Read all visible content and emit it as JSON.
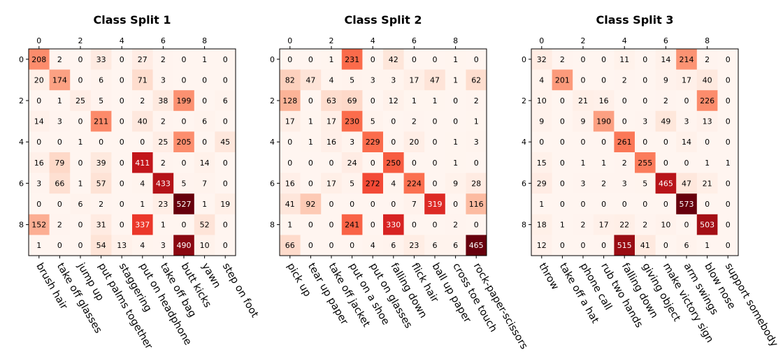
{
  "chart_data": [
    {
      "type": "heatmap",
      "title": "Class Split 1",
      "x_ticks": [
        "0",
        "2",
        "4",
        "6",
        "8"
      ],
      "y_ticks": [
        "0",
        "2",
        "4",
        "6",
        "8"
      ],
      "categories": [
        "brush hair",
        "take off glasses",
        "jump up",
        "put palms together",
        "staggering",
        "put on headphone",
        "take off bag",
        "butt kicks",
        "yawn",
        "step on foot"
      ],
      "colormap": "Reds",
      "vmax": 527,
      "matrix": [
        [
          208,
          2,
          0,
          33,
          0,
          27,
          2,
          0,
          1,
          0
        ],
        [
          20,
          174,
          0,
          6,
          0,
          71,
          3,
          0,
          0,
          0
        ],
        [
          0,
          1,
          25,
          5,
          0,
          2,
          38,
          199,
          0,
          6
        ],
        [
          14,
          3,
          0,
          211,
          0,
          40,
          2,
          0,
          6,
          0
        ],
        [
          0,
          0,
          1,
          0,
          0,
          0,
          25,
          205,
          0,
          45
        ],
        [
          16,
          79,
          0,
          39,
          0,
          411,
          2,
          0,
          14,
          0
        ],
        [
          3,
          66,
          1,
          57,
          0,
          4,
          433,
          5,
          7,
          0
        ],
        [
          0,
          0,
          6,
          2,
          0,
          1,
          23,
          527,
          1,
          19
        ],
        [
          152,
          2,
          0,
          31,
          0,
          337,
          1,
          0,
          52,
          0
        ],
        [
          1,
          0,
          0,
          54,
          13,
          4,
          3,
          490,
          10,
          0
        ]
      ]
    },
    {
      "type": "heatmap",
      "title": "Class Split 2",
      "x_ticks": [
        "0",
        "2",
        "4",
        "6",
        "8"
      ],
      "y_ticks": [
        "0",
        "2",
        "4",
        "6",
        "8"
      ],
      "categories": [
        "pick up",
        "tear up paper",
        "take off jacket",
        "put on a shoe",
        "put on glasses",
        "falling down",
        "flick hair",
        "ball up paper",
        "cross toe touch",
        "rock-paper-scissors"
      ],
      "colormap": "Reds",
      "vmax": 465,
      "matrix": [
        [
          0,
          0,
          1,
          231,
          0,
          42,
          0,
          0,
          1,
          0
        ],
        [
          82,
          47,
          4,
          5,
          3,
          3,
          17,
          47,
          1,
          62
        ],
        [
          128,
          0,
          63,
          69,
          0,
          12,
          1,
          1,
          0,
          2
        ],
        [
          17,
          1,
          17,
          230,
          5,
          0,
          2,
          0,
          0,
          1
        ],
        [
          0,
          1,
          16,
          3,
          229,
          0,
          20,
          0,
          1,
          3
        ],
        [
          0,
          0,
          0,
          24,
          0,
          250,
          0,
          0,
          1,
          0
        ],
        [
          16,
          0,
          17,
          5,
          272,
          4,
          224,
          0,
          9,
          28
        ],
        [
          41,
          92,
          0,
          0,
          0,
          0,
          7,
          319,
          0,
          116
        ],
        [
          1,
          0,
          0,
          241,
          0,
          330,
          0,
          0,
          2,
          0
        ],
        [
          66,
          0,
          0,
          0,
          4,
          6,
          23,
          6,
          6,
          465
        ]
      ]
    },
    {
      "type": "heatmap",
      "title": "Class Split 3",
      "x_ticks": [
        "0",
        "2",
        "4",
        "6",
        "8"
      ],
      "y_ticks": [
        "0",
        "2",
        "4",
        "6",
        "8"
      ],
      "categories": [
        "throw",
        "take off a hat",
        "phone call",
        "rub two hands",
        "falling down",
        "giving object",
        "make victory sign",
        "arm swings",
        "blow nose",
        "support somebody"
      ],
      "colormap": "Reds",
      "vmax": 573,
      "matrix": [
        [
          32,
          2,
          0,
          0,
          11,
          0,
          14,
          214,
          2,
          0
        ],
        [
          4,
          201,
          0,
          0,
          2,
          0,
          9,
          17,
          40,
          0
        ],
        [
          10,
          0,
          21,
          16,
          0,
          0,
          2,
          0,
          226,
          0
        ],
        [
          9,
          0,
          9,
          190,
          0,
          3,
          49,
          3,
          13,
          0
        ],
        [
          0,
          0,
          0,
          0,
          261,
          0,
          0,
          14,
          0,
          0
        ],
        [
          15,
          0,
          1,
          1,
          2,
          255,
          0,
          0,
          1,
          1
        ],
        [
          29,
          0,
          3,
          2,
          3,
          5,
          465,
          47,
          21,
          0
        ],
        [
          1,
          0,
          0,
          0,
          0,
          0,
          0,
          573,
          0,
          0
        ],
        [
          18,
          1,
          2,
          17,
          22,
          2,
          10,
          0,
          503,
          0
        ],
        [
          12,
          0,
          0,
          0,
          515,
          41,
          0,
          6,
          1,
          0
        ]
      ]
    }
  ]
}
